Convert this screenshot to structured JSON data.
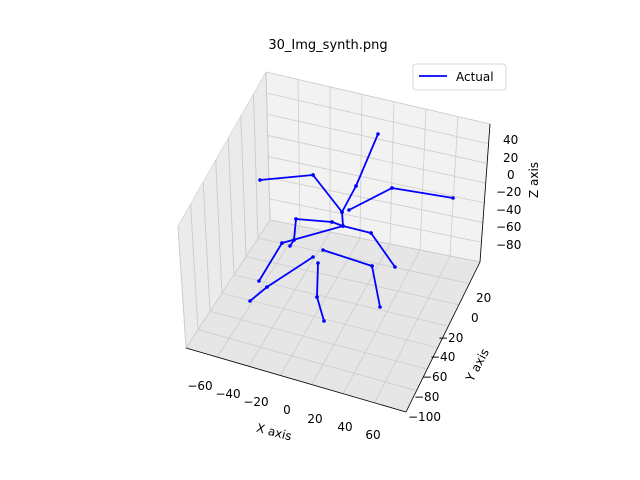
{
  "chart_data": {
    "type": "line3d",
    "title": "30_Img_synth.png",
    "xlabel": "X axis",
    "ylabel": "Y axis",
    "zlabel": "Z axis",
    "x_ticks": [
      "−60",
      "−40",
      "−20",
      "0",
      "20",
      "40",
      "60"
    ],
    "y_ticks": [
      "20",
      "0",
      "−20",
      "−40",
      "−60",
      "−80",
      "−100"
    ],
    "z_ticks": [
      "40",
      "20",
      "0",
      "−20",
      "−40",
      "−60",
      "−80"
    ],
    "legend": {
      "label": "Actual",
      "position": "top-right"
    },
    "grid": true,
    "series_color": "#0000ff",
    "skeleton_segments_screen": "approximate projected skeleton drawn below"
  }
}
